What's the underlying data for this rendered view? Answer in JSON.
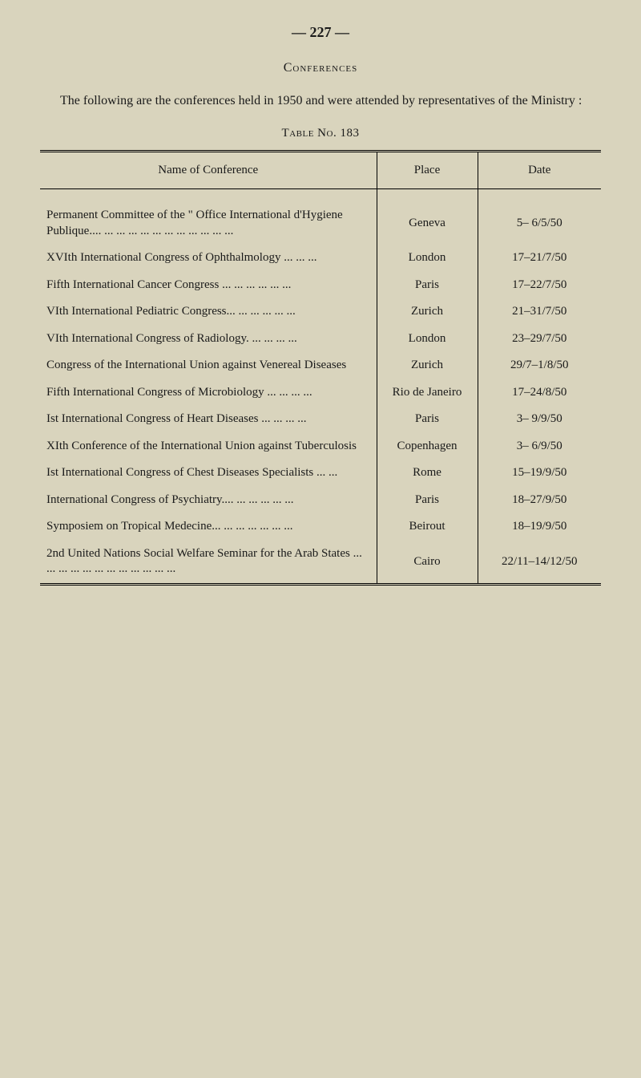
{
  "page_number": "— 227 —",
  "section_title": "Conferences",
  "intro_text": "The following are the conferences held in 1950 and were attended by representatives of the Ministry :",
  "table_label": "Table No. 183",
  "headers": {
    "name": "Name of Conference",
    "place": "Place",
    "date": "Date"
  },
  "rows": [
    {
      "name": "Permanent Committee of the \" Office International d'Hygiene Publique.... ... ... ... ... ... ... ... ... ... ... ...",
      "place": "Geneva",
      "date": "5– 6/5/50"
    },
    {
      "name": "XVIth International Congress of Ophthalmology ... ... ...",
      "place": "London",
      "date": "17–21/7/50"
    },
    {
      "name": "Fifth International Cancer Congress ... ... ... ... ... ...",
      "place": "Paris",
      "date": "17–22/7/50"
    },
    {
      "name": "VIth International Pediatric Congress... ... ... ... ... ...",
      "place": "Zurich",
      "date": "21–31/7/50"
    },
    {
      "name": "VIth International Congress of Radiology. ... ... ... ...",
      "place": "London",
      "date": "23–29/7/50"
    },
    {
      "name": "Congress of the International Union against Venereal Diseases",
      "place": "Zurich",
      "date": "29/7–1/8/50"
    },
    {
      "name": "Fifth International Congress of Microbiology ... ... ... ...",
      "place": "Rio de Janeiro",
      "date": "17–24/8/50"
    },
    {
      "name": "Ist International Congress of Heart Diseases ... ... ... ...",
      "place": "Paris",
      "date": "3– 9/9/50"
    },
    {
      "name": "XIth Conference of the International Union against Tuberculosis",
      "place": "Copenhagen",
      "date": "3– 6/9/50"
    },
    {
      "name": "Ist International Congress of Chest Diseases Specialists ... ...",
      "place": "Rome",
      "date": "15–19/9/50"
    },
    {
      "name": "International Congress of Psychiatry.... ... ... ... ... ...",
      "place": "Paris",
      "date": "18–27/9/50"
    },
    {
      "name": "Symposiem on Tropical Medecine... ... ... ... ... ... ...",
      "place": "Beirout",
      "date": "18–19/9/50"
    },
    {
      "name": "2nd United Nations Social Welfare Seminar for the Arab States ... ... ... ... ... ... ... ... ... ... ... ...",
      "place": "Cairo",
      "date": "22/11–14/12/50"
    }
  ],
  "styling": {
    "background_color": "#d9d4bd",
    "text_color": "#1a1a1a",
    "font_family": "Georgia serif",
    "body_font_size": 15,
    "title_font_size": 16,
    "page_number_font_size": 18
  }
}
